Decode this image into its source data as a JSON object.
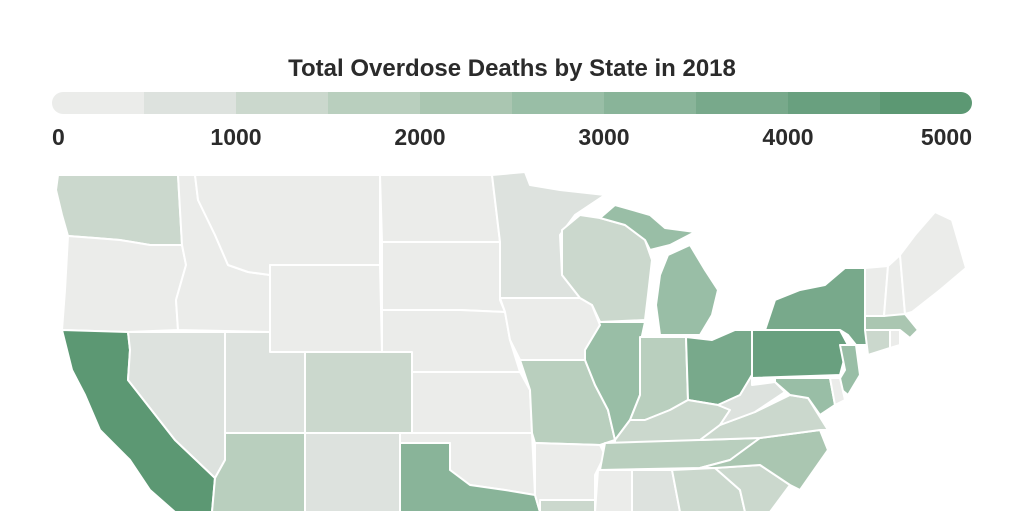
{
  "title": "Total Overdose Deaths by State in 2018",
  "legend": {
    "ticks": [
      "0",
      "1000",
      "2000",
      "3000",
      "4000",
      "5000"
    ],
    "colors": [
      "#ebecea",
      "#dde2de",
      "#cbd8cd",
      "#b9cfbe",
      "#aac6b1",
      "#99bea6",
      "#89b499",
      "#78a98b",
      "#69a07f",
      "#5c9873"
    ]
  },
  "chart_data": {
    "type": "choropleth",
    "title": "Total Overdose Deaths by State in 2018",
    "range": [
      0,
      5000
    ],
    "states": {
      "WA": 1173,
      "OR": 339,
      "CA": 5348,
      "NV": 755,
      "ID": 247,
      "MT": 120,
      "WY": 95,
      "UT": 632,
      "CO": 1055,
      "AZ": 1627,
      "NM": 601,
      "ND": 68,
      "SD": 84,
      "NE": 148,
      "KS": 337,
      "OK": 465,
      "TX": 3122,
      "MN": 772,
      "IA": 302,
      "MO": 1661,
      "AR": 465,
      "LA": 1200,
      "WI": 1084,
      "IL": 2761,
      "MI": 2643,
      "IN": 1682,
      "KY": 1268,
      "TN": 1834,
      "MS": 350,
      "AL": 783,
      "GA": 1486,
      "OH": 3835,
      "WV": 858,
      "VA": 1459,
      "NC": 2181,
      "SC": 1072,
      "PA": 4364,
      "NY": 3813,
      "NJ": 2900,
      "MD": 2500,
      "DE": 402,
      "MA": 2193,
      "CT": 1069,
      "RI": 314,
      "VT": 127,
      "NH": 413,
      "ME": 282
    }
  }
}
